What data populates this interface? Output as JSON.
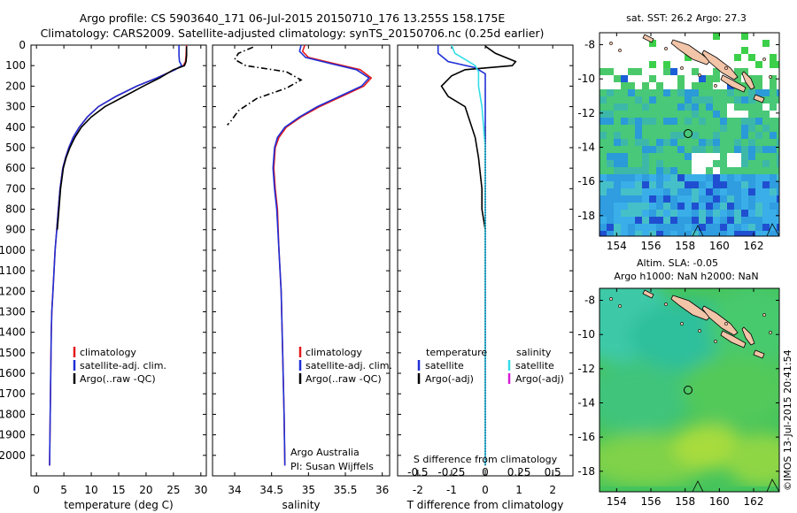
{
  "header": {
    "line1": "Argo profile: CS 5903640_171 06-Jul-2015 20150710_176 13.255S 158.175E",
    "line2": "Climatology: CARS2009. Satellite-adjusted climatology: synTS_20150706.nc (0.25d earlier)"
  },
  "colors": {
    "climatology": "#e41a1c",
    "satellite": "#1f2fd6",
    "argo": "#000000",
    "salinity_satellite": "#33dde8",
    "salinity_argo": "#d61fd6",
    "land": "#f2c4a8"
  },
  "footer": {
    "argo_australia": "Argo Australia",
    "pi": "PI: Susan Wijffels",
    "timestamp": "©IMOS 13-Jul-2015 20:41:54"
  },
  "chart_data": [
    {
      "type": "line",
      "panel": "temperature",
      "xlabel": "temperature (deg C)",
      "ylabel": "",
      "xlim": [
        -1,
        31
      ],
      "ylim": [
        2100,
        0
      ],
      "xticks": [
        0,
        5,
        10,
        15,
        20,
        25,
        30
      ],
      "yticks": [
        0,
        100,
        200,
        300,
        400,
        500,
        600,
        700,
        800,
        900,
        1000,
        1100,
        1200,
        1300,
        1400,
        1500,
        1600,
        1700,
        1800,
        1900,
        2000
      ],
      "legend": [
        "climatology",
        "satellite-adj. clim.",
        "Argo(..raw -QC)"
      ],
      "legend_position": "lower-left",
      "series": [
        {
          "name": "climatology",
          "color": "#e41a1c",
          "x": [
            27.4,
            27.3,
            27.2,
            26.8,
            25.2,
            22.0,
            18.3,
            14.5,
            11.3,
            9.3,
            7.8,
            6.7,
            5.9,
            5.3,
            4.8,
            4.3,
            4.0,
            3.7,
            3.4,
            3.2,
            3.0,
            2.8,
            2.7,
            2.6,
            2.5,
            2.4
          ],
          "y": [
            0,
            50,
            80,
            100,
            120,
            160,
            200,
            250,
            300,
            350,
            400,
            450,
            500,
            550,
            600,
            700,
            800,
            900,
            1000,
            1100,
            1200,
            1300,
            1400,
            1600,
            1800,
            2050
          ]
        },
        {
          "name": "satellite-adj. clim.",
          "color": "#1f2fd6",
          "x": [
            26.0,
            26.0,
            26.1,
            26.5,
            25.3,
            22.0,
            18.3,
            14.5,
            11.3,
            9.3,
            7.8,
            6.7,
            5.9,
            5.3,
            4.8,
            4.3,
            4.0,
            3.7,
            3.4,
            3.2,
            3.0,
            2.8,
            2.7,
            2.6,
            2.5,
            2.4
          ],
          "y": [
            0,
            50,
            80,
            100,
            120,
            160,
            200,
            250,
            300,
            350,
            400,
            450,
            500,
            550,
            600,
            700,
            800,
            900,
            1000,
            1100,
            1200,
            1300,
            1400,
            1600,
            1800,
            2050
          ]
        },
        {
          "name": "Argo(..raw -QC)",
          "color": "#000000",
          "x": [
            27.4,
            27.4,
            27.3,
            27.0,
            25.0,
            22.5,
            19.5,
            16.0,
            12.5,
            10.0,
            8.2,
            7.0,
            6.1,
            5.4,
            4.9,
            4.4,
            4.1,
            3.8
          ],
          "y": [
            5,
            50,
            80,
            100,
            120,
            160,
            200,
            250,
            300,
            350,
            400,
            450,
            500,
            550,
            600,
            700,
            800,
            900
          ]
        }
      ]
    },
    {
      "type": "line",
      "panel": "salinity",
      "xlabel": "salinity",
      "ylabel": "",
      "xlim": [
        33.7,
        36.1
      ],
      "ylim": [
        2100,
        0
      ],
      "xticks": [
        34,
        34.5,
        35,
        35.5,
        36
      ],
      "legend": [
        "climatology",
        "satellite-adj. clim.",
        "Argo(..raw -QC)"
      ],
      "legend_position": "lower-right",
      "series": [
        {
          "name": "climatology",
          "color": "#e41a1c",
          "x": [
            34.95,
            34.92,
            35.0,
            35.35,
            35.7,
            35.85,
            35.75,
            35.45,
            35.15,
            34.9,
            34.7,
            34.6,
            34.55,
            34.53,
            34.55,
            34.58,
            34.6,
            34.63,
            34.65,
            34.67,
            34.68
          ],
          "y": [
            0,
            30,
            60,
            90,
            120,
            160,
            200,
            250,
            300,
            350,
            400,
            450,
            500,
            600,
            700,
            800,
            1000,
            1200,
            1500,
            1800,
            2050
          ]
        },
        {
          "name": "satellite-adj. clim.",
          "color": "#1f2fd6",
          "x": [
            34.9,
            34.88,
            34.96,
            35.3,
            35.65,
            35.82,
            35.72,
            35.42,
            35.12,
            34.88,
            34.68,
            34.58,
            34.54,
            34.52,
            34.54,
            34.57,
            34.6,
            34.63,
            34.65,
            34.67,
            34.68
          ],
          "y": [
            0,
            30,
            60,
            90,
            120,
            160,
            200,
            250,
            300,
            350,
            400,
            450,
            500,
            600,
            700,
            800,
            1000,
            1200,
            1500,
            1800,
            2050
          ]
        },
        {
          "name": "Argo(..raw -QC)",
          "color": "#000000",
          "dashed": true,
          "x": [
            34.25,
            34.05,
            34.0,
            34.15,
            34.7,
            34.9,
            34.7,
            34.3,
            34.05,
            33.95,
            33.9
          ],
          "y": [
            10,
            40,
            70,
            100,
            130,
            170,
            210,
            260,
            320,
            370,
            390
          ]
        }
      ]
    },
    {
      "type": "line",
      "panel": "difference",
      "xlabel": "T difference from climatology",
      "xlabel_top": "S difference from climatology",
      "xlim": [
        -2.6,
        2.6
      ],
      "ylim": [
        2100,
        0
      ],
      "xticks": [
        -2,
        -1,
        0,
        1,
        2
      ],
      "sticks": [
        "-0.5",
        "-0.25",
        "0",
        "0.25",
        "0.5"
      ],
      "legend_temperature_header": "temperature",
      "legend_salinity_header": "salinity",
      "legend_temperature": [
        "satellite",
        "Argo(-adj)"
      ],
      "legend_salinity": [
        "satellite",
        "Argo(-adj)"
      ],
      "series": [
        {
          "name": "satellite",
          "group": "temperature",
          "color": "#1f2fd6",
          "x": [
            -1.4,
            -1.4,
            -1.1,
            -0.3,
            0.0,
            0.0,
            0.0
          ],
          "y": [
            0,
            40,
            80,
            110,
            140,
            300,
            2050
          ]
        },
        {
          "name": "Argo(-adj)",
          "group": "temperature",
          "color": "#000000",
          "x": [
            0.0,
            0.3,
            0.9,
            0.8,
            -0.6,
            -1.0,
            -1.3,
            -1.1,
            -0.6,
            -0.5,
            -0.3,
            -0.2,
            -0.1,
            -0.1,
            0.0
          ],
          "y": [
            5,
            40,
            80,
            100,
            120,
            150,
            200,
            250,
            300,
            350,
            450,
            550,
            700,
            800,
            900
          ]
        },
        {
          "name": "satellite",
          "group": "salinity",
          "color": "#33dde8",
          "x": [
            -1.0,
            -0.9,
            -0.6,
            -0.3,
            -0.2,
            -0.2,
            -0.1,
            0.0,
            0.0
          ],
          "y": [
            0,
            40,
            70,
            100,
            130,
            200,
            300,
            500,
            2050
          ]
        },
        {
          "name": "Argo(-adj)",
          "group": "salinity",
          "color": "#d61fd6",
          "x": [],
          "y": []
        }
      ]
    },
    {
      "type": "heatmap",
      "panel": "sst-map",
      "title": "sat. SST: 26.2  Argo: 27.3",
      "xlim": [
        153,
        163.5
      ],
      "ylim": [
        -19.2,
        -7.3
      ],
      "xticks": [
        154,
        156,
        158,
        160,
        162
      ],
      "yticks": [
        -8,
        -10,
        -12,
        -14,
        -16,
        -18
      ],
      "argo_location": [
        158.175,
        -13.255
      ]
    },
    {
      "type": "heatmap",
      "panel": "sla-map",
      "title": "Altim. SLA: -0.05",
      "subtitle": "Argo h1000: NaN  h2000: NaN",
      "xlim": [
        153,
        163.5
      ],
      "ylim": [
        -19.2,
        -7.3
      ],
      "xticks": [
        154,
        156,
        158,
        160,
        162
      ],
      "yticks": [
        -8,
        -10,
        -12,
        -14,
        -16,
        -18
      ],
      "argo_location": [
        158.175,
        -13.255
      ]
    }
  ]
}
